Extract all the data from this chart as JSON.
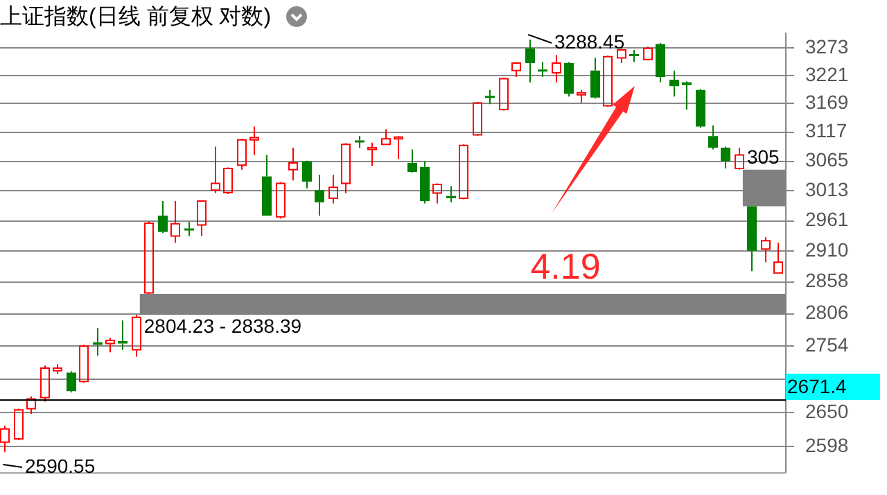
{
  "chart_data": {
    "type": "candlestick",
    "title": "上证指数(日线 前复权 对数)",
    "categories": [
      null,
      null,
      null,
      null,
      null,
      null,
      null,
      null,
      null,
      null,
      null,
      null,
      null,
      null,
      null,
      null,
      null,
      null,
      null,
      null,
      null,
      null,
      null,
      null,
      null,
      null,
      null,
      null,
      null,
      null,
      null,
      null,
      null,
      null,
      null,
      null,
      null,
      null,
      null,
      null,
      null,
      null,
      null,
      null,
      null,
      null,
      null,
      null,
      null,
      null,
      null,
      null,
      null,
      null,
      null,
      null,
      null,
      null,
      null,
      null
    ],
    "ohlc": [
      [
        2605,
        2630,
        2590.55,
        2625
      ],
      [
        2610,
        2656,
        2608,
        2654
      ],
      [
        2656,
        2675,
        2648,
        2671
      ],
      [
        2673,
        2723,
        2667,
        2719
      ],
      [
        2715,
        2725,
        2710,
        2719
      ],
      [
        2712,
        2714,
        2681,
        2683
      ],
      [
        2698,
        2756,
        2696,
        2754
      ],
      [
        2760,
        2783,
        2739,
        2756
      ],
      [
        2758,
        2767,
        2744,
        2763
      ],
      [
        2762,
        2795,
        2748,
        2758
      ],
      [
        2748,
        2804.23,
        2737,
        2800
      ],
      [
        2840,
        2960,
        2838.39,
        2957
      ],
      [
        2970,
        2995,
        2940,
        2942
      ],
      [
        2935,
        2995,
        2924,
        2956
      ],
      [
        2948,
        2959,
        2935,
        2945
      ],
      [
        2954,
        2996,
        2935,
        2995
      ],
      [
        3014,
        3091,
        3009,
        3026
      ],
      [
        3010,
        3054,
        3007,
        3052
      ],
      [
        3058,
        3105,
        3050,
        3103
      ],
      [
        3103,
        3127,
        3076,
        3107
      ],
      [
        3038,
        3076,
        2970,
        2970
      ],
      [
        2968,
        3028,
        2965,
        3026
      ],
      [
        3050,
        3089,
        3031,
        3062
      ],
      [
        3065,
        3066,
        3017,
        3029
      ],
      [
        3014,
        3041,
        2970,
        2993
      ],
      [
        3000,
        3041,
        2991,
        3019
      ],
      [
        3026,
        3097,
        3009,
        3095
      ],
      [
        3102,
        3110,
        3089,
        3099
      ],
      [
        3086,
        3098,
        3057,
        3089
      ],
      [
        3095,
        3122,
        3094,
        3105
      ],
      [
        3105,
        3110,
        3069,
        3108
      ],
      [
        3062,
        3086,
        3045,
        3046
      ],
      [
        3055,
        3065,
        2991,
        2995
      ],
      [
        3009,
        3026,
        2991,
        3024
      ],
      [
        3004,
        3021,
        2993,
        3000
      ],
      [
        3000,
        3095,
        2998,
        3093
      ],
      [
        3112,
        3172,
        3110,
        3170
      ],
      [
        3183,
        3194,
        3168,
        3181
      ],
      [
        3158,
        3217,
        3156,
        3215
      ],
      [
        3230,
        3246,
        3218,
        3244
      ],
      [
        3272,
        3288.45,
        3208,
        3244
      ],
      [
        3232,
        3246,
        3218,
        3229
      ],
      [
        3226,
        3259,
        3208,
        3244
      ],
      [
        3244,
        3246,
        3182,
        3187
      ],
      [
        3185,
        3194,
        3170,
        3189
      ],
      [
        3230,
        3254,
        3178,
        3180
      ],
      [
        3165,
        3258,
        3163,
        3256
      ],
      [
        3254,
        3271,
        3244,
        3269
      ],
      [
        3261,
        3269,
        3246,
        3258
      ],
      [
        3251,
        3275,
        3249,
        3272
      ],
      [
        3280,
        3282,
        3208,
        3218
      ],
      [
        3213,
        3230,
        3182,
        3201
      ],
      [
        3208,
        3210,
        3158,
        3203
      ],
      [
        3194,
        3196,
        3125,
        3127
      ],
      [
        3110,
        3129,
        3086,
        3089
      ],
      [
        3089,
        3091,
        3052,
        3065
      ],
      [
        3052,
        3089,
        3050,
        3076
      ],
      [
        2986,
        2986,
        2876,
        2910
      ],
      [
        2913,
        2933,
        2891,
        2927
      ],
      [
        2873,
        2924,
        2873,
        2891
      ]
    ],
    "ylim": [
      2560,
      3300
    ],
    "yticks": [
      2598,
      2650,
      {
        "value": 2702,
        "label": null
      },
      2754,
      2806,
      2858,
      2910,
      2961,
      3013,
      3065,
      3117,
      3169,
      3221,
      3273
    ],
    "log": true,
    "grid": "y",
    "bands": [
      {
        "axis": "y",
        "from": 2804.23,
        "to": 2838.39,
        "label": "2804.23 - 2838.39",
        "color": "#808080"
      },
      {
        "axis": "y",
        "from": 2986,
        "to": 3050,
        "label": "305",
        "color": "#808080"
      }
    ],
    "ref_lines": [
      {
        "axis": "y",
        "value": 2671.4,
        "label": "2671.4",
        "color": "#000000"
      }
    ],
    "annotations": [
      "3288.45",
      "2590.55",
      "4.19"
    ]
  }
}
